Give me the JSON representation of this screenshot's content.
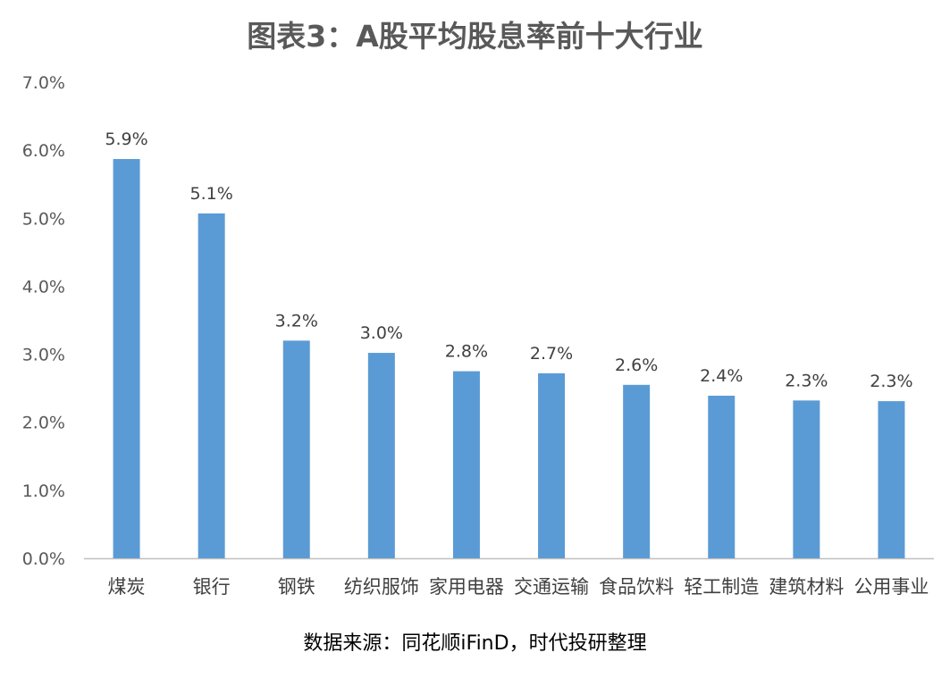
{
  "chart_data": {
    "type": "bar",
    "title": "图表3：A股平均股息率前十大行业",
    "categories": [
      "煤炭",
      "银行",
      "钢铁",
      "纺织服饰",
      "家用电器",
      "交通运输",
      "食品饮料",
      "轻工制造",
      "建筑材料",
      "公用事业"
    ],
    "values": [
      5.87,
      5.07,
      3.2,
      3.02,
      2.75,
      2.72,
      2.55,
      2.39,
      2.32,
      2.31
    ],
    "data_labels": [
      "5.9%",
      "5.1%",
      "3.2%",
      "3.0%",
      "2.8%",
      "2.7%",
      "2.6%",
      "2.4%",
      "2.3%",
      "2.3%"
    ],
    "y_ticks": [
      "0.0%",
      "1.0%",
      "2.0%",
      "3.0%",
      "4.0%",
      "5.0%",
      "6.0%",
      "7.0%"
    ],
    "ylim": [
      0,
      7
    ],
    "grid": false,
    "legend": "none",
    "bar_color": "#5B9BD5",
    "source": "数据来源：同花顺iFinD，时代投研整理"
  }
}
